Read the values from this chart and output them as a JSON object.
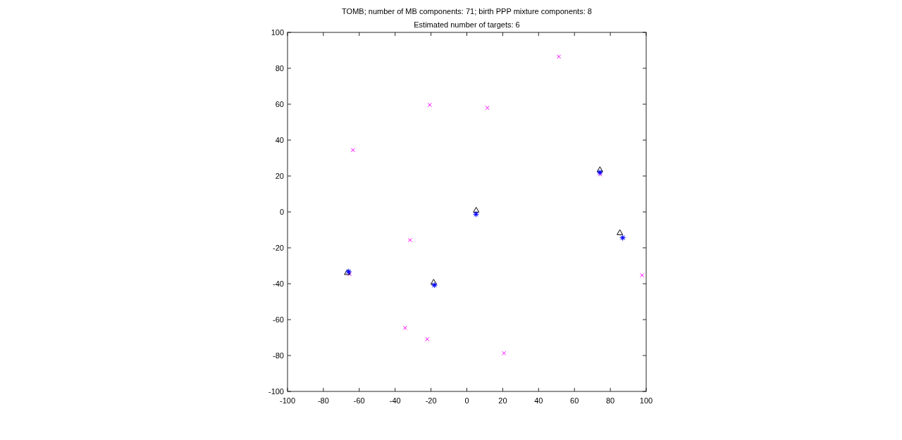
{
  "chart_data": {
    "type": "scatter",
    "title": "TOMB; number of MB components: 71; birth PPP mixture components: 8",
    "subtitle": "Estimated number of targets: 6",
    "xlim": [
      -100,
      100
    ],
    "ylim": [
      -100,
      100
    ],
    "xticks": [
      -100,
      -80,
      -60,
      -40,
      -20,
      0,
      20,
      40,
      60,
      80,
      100
    ],
    "yticks": [
      -100,
      -80,
      -60,
      -40,
      -20,
      0,
      20,
      40,
      60,
      80,
      100
    ],
    "series": [
      {
        "color": "#ff00ff",
        "marker": "cross",
        "x": [
          51.3,
          -20.7,
          11.4,
          -63.5,
          -31.7,
          -65.4,
          -34.4,
          -22.1,
          20.7,
          97.7,
          74.3
        ],
        "values": [
          86.5,
          59.6,
          58.0,
          34.4,
          -15.7,
          -34.6,
          -64.6,
          -70.9,
          -78.7,
          -35.3,
          20.9
        ]
      },
      {
        "color": "#000000",
        "marker": "triangle",
        "x": [
          -66.7,
          -18.5,
          5.2,
          74.2,
          85.3
        ],
        "values": [
          -33.7,
          -39.1,
          1.0,
          23.6,
          -11.5
        ]
      },
      {
        "color": "#0000ff",
        "marker": "star",
        "x": [
          -65.9,
          -18.1,
          5.1,
          74.2,
          86.9
        ],
        "values": [
          -33.3,
          -40.8,
          -1.3,
          22.0,
          -14.4
        ]
      }
    ]
  }
}
